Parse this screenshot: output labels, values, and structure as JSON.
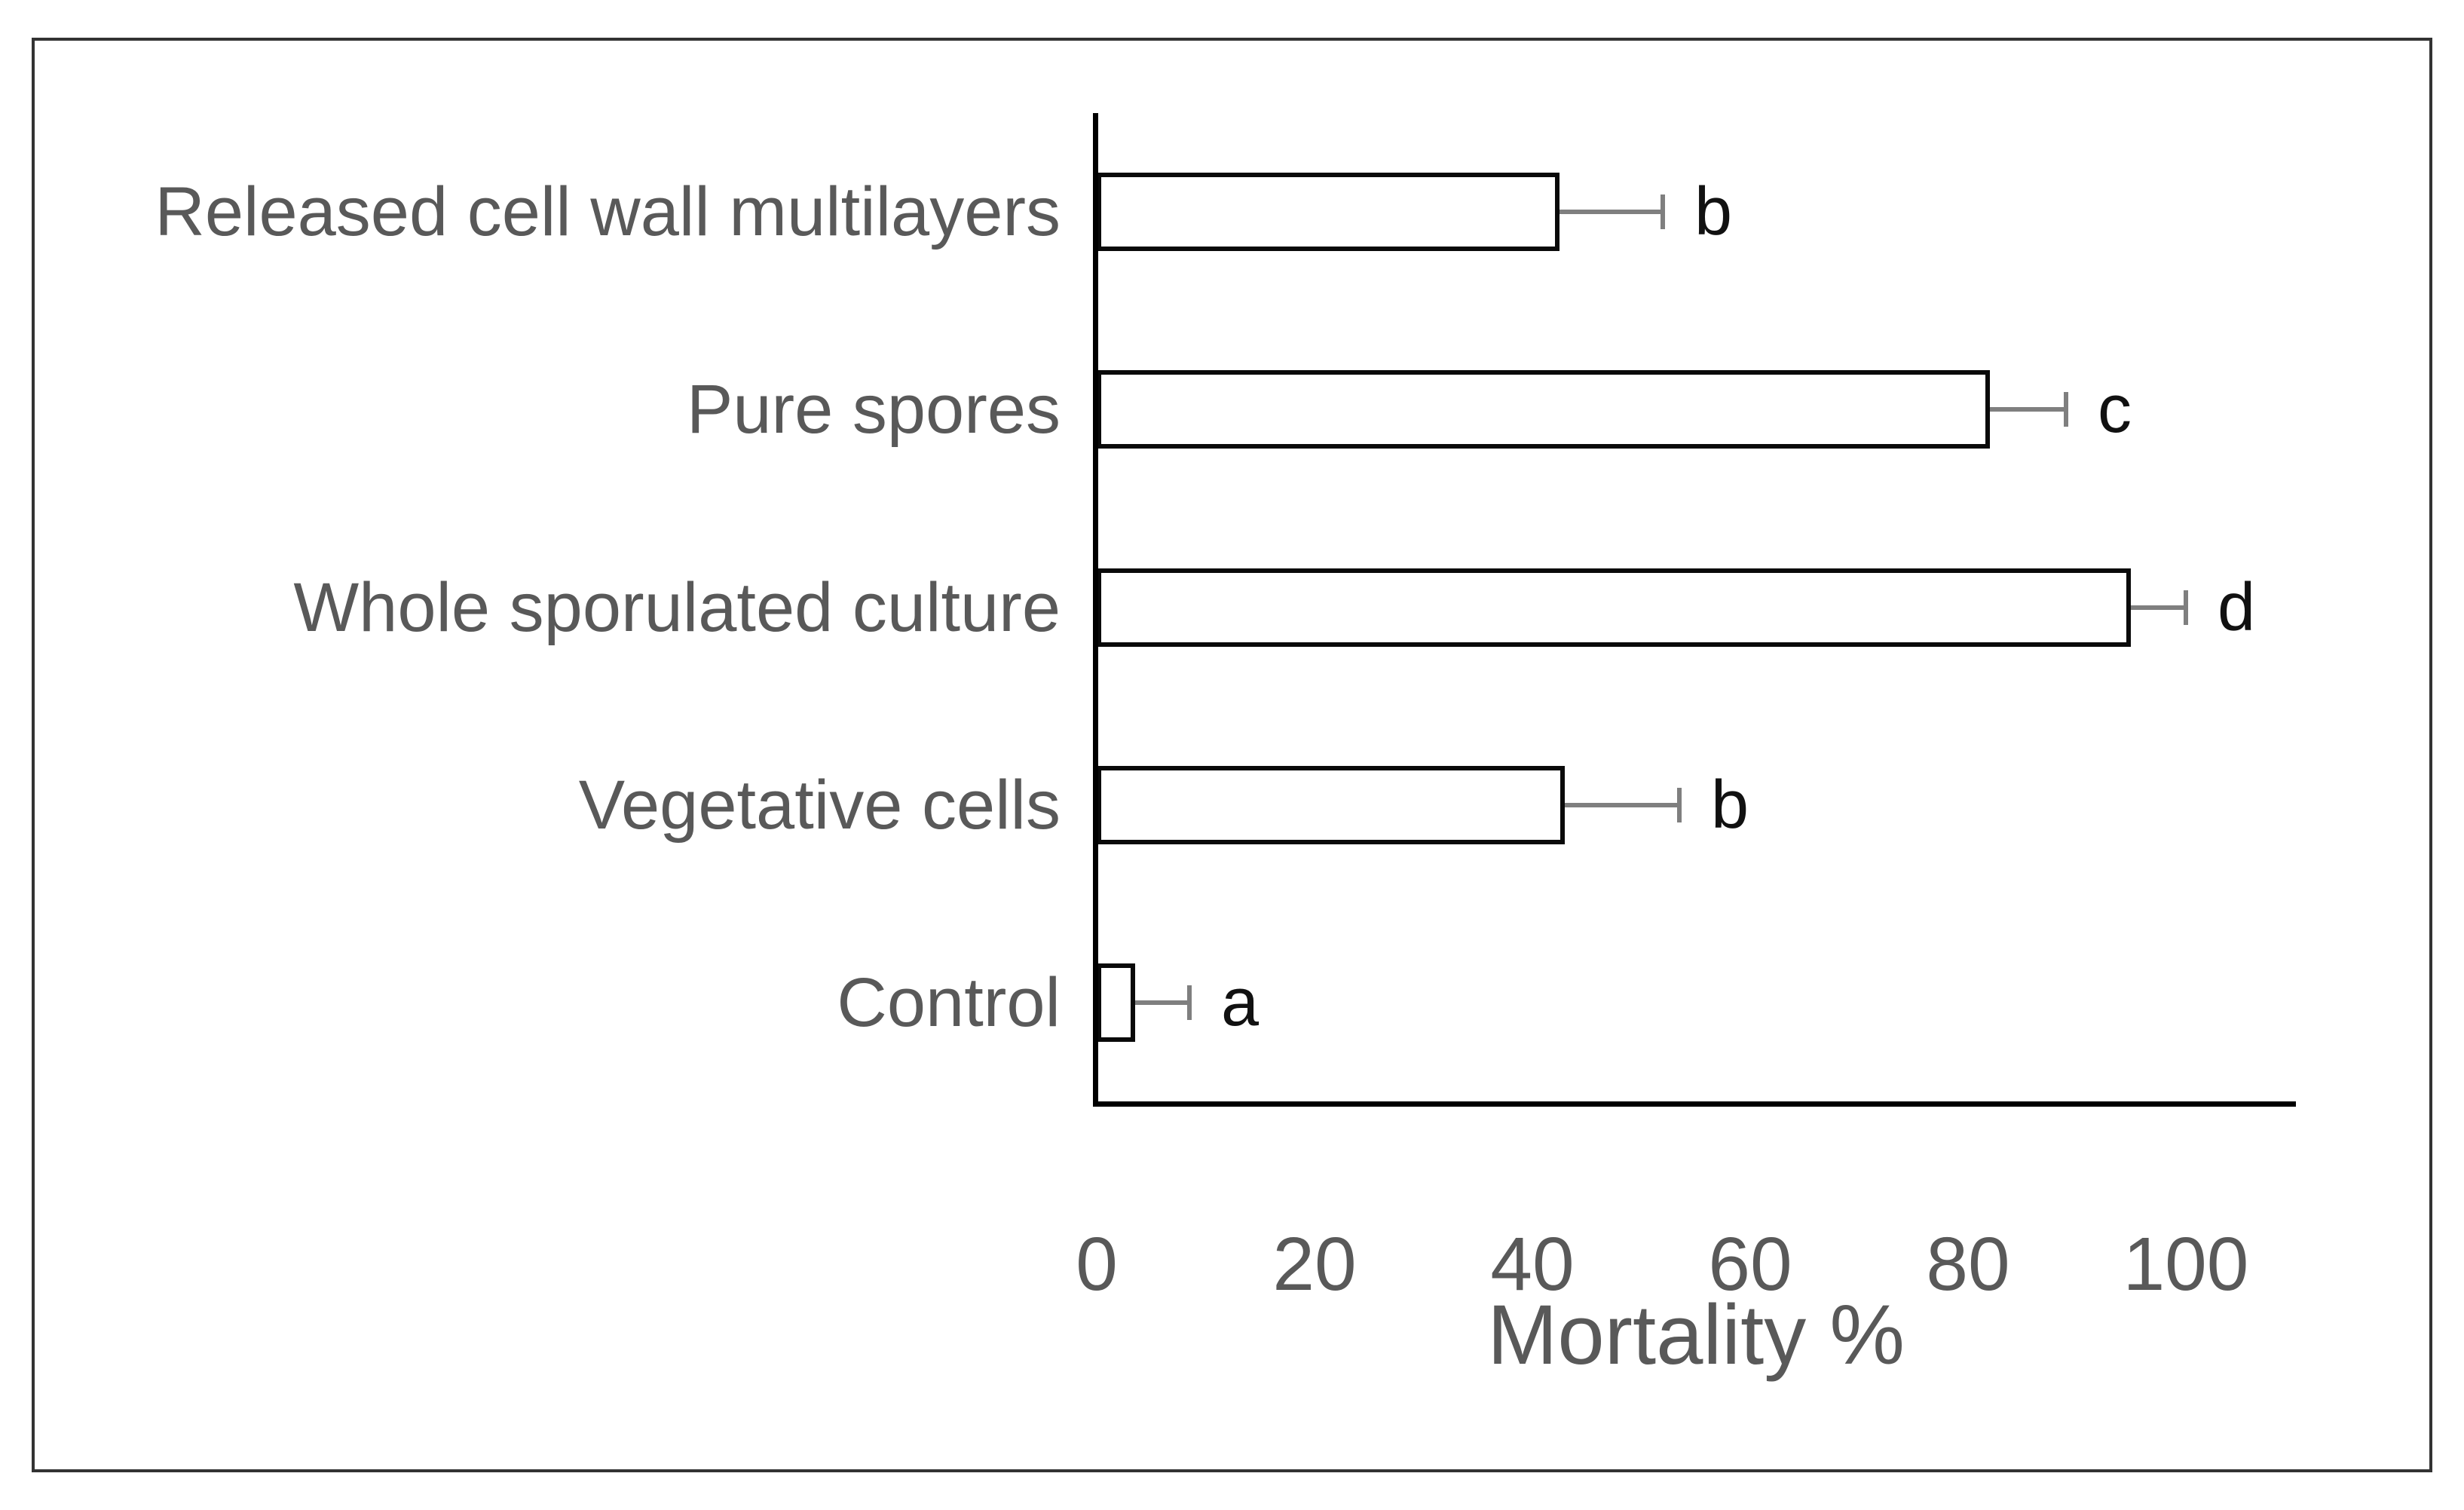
{
  "chart_data": {
    "type": "bar",
    "orientation": "horizontal",
    "title": "",
    "xlabel": "Mortality %",
    "ylabel": "",
    "categories": [
      "Released cell wall multilayers",
      "Pure spores",
      "Whole sporulated culture",
      "Vegetative cells",
      "Control"
    ],
    "values": [
      42.5,
      82,
      95,
      43,
      3.5
    ],
    "errors_plus": [
      9.5,
      7,
      5,
      10.5,
      5
    ],
    "significance_letters": [
      "b",
      "c",
      "d",
      "b",
      "a"
    ],
    "xticks": [
      0,
      20,
      40,
      60,
      80,
      100
    ],
    "xlim": [
      0,
      110
    ],
    "grid": false,
    "legend": false,
    "colors": {
      "bar_fill": "#ffffff",
      "bar_border": "#0a0a0a",
      "error_bar": "#7f7f7f",
      "axis_line": "#000000",
      "text_gray": "#595959",
      "letter_color": "#111111"
    }
  }
}
